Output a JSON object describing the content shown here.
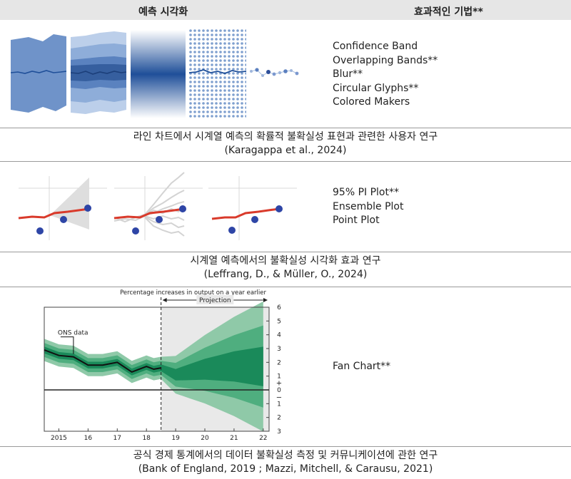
{
  "header": {
    "left_title": "예측 시각화",
    "right_title": "효과적인 기법**"
  },
  "rows": [
    {
      "techniques": [
        "Confidence Band",
        "Overlapping Bands**",
        "Blur**",
        "Circular Glyphs**",
        "Colored Makers"
      ],
      "caption_line1": "라인 차트에서 시계열 예측의 확률적 불확실성 표현과 관련한 사용자 연구",
      "caption_line2": "(Karagappa et al., 2024)"
    },
    {
      "techniques": [
        "95% PI Plot**",
        "Ensemble Plot",
        "Point Plot"
      ],
      "caption_line1": "시계열 예측에서의 불확실성 시각화 효과 연구",
      "caption_line2": "(Leffrang, D., & Müller, O., 2024)"
    },
    {
      "techniques": [
        "Fan Chart**"
      ],
      "caption_line1": "공식 경제 통계에서의 데이터 불확실성 측정 및 커뮤니케이션에 관한 연구",
      "caption_line2": "(Bank of England, 2019 ; Mazzi, Mitchell, & Carausu, 2021)"
    }
  ],
  "colors": {
    "band_dark": "#1f4f99",
    "band_light": "#a9c0e0",
    "forecast_red": "#d93a2b",
    "point_blue": "#2e45a6",
    "fan_green": "#1a8a5a",
    "projection_shade": "#e9e9e9"
  },
  "fan_chart": {
    "top_label": "Percentage increases in output on a year earlier",
    "projection_label": "Projection",
    "annotation": "ONS data",
    "x_ticks": [
      "2015",
      "16",
      "17",
      "18",
      "19",
      "20",
      "21",
      "22"
    ],
    "y_ticks_upper": [
      "6",
      "5",
      "4",
      "3",
      "2",
      "1"
    ],
    "y_plus": "+",
    "y_zero": "0",
    "y_minus": "−",
    "y_ticks_lower": [
      "1",
      "2",
      "3"
    ]
  },
  "chart_data": {
    "type": "area",
    "title": "Percentage increases in output on a year earlier",
    "xlabel": "",
    "ylabel": "",
    "x_ticks": [
      "2015",
      "16",
      "17",
      "18",
      "19",
      "20",
      "21",
      "22"
    ],
    "ylim": [
      -3,
      6
    ],
    "series": [
      {
        "name": "ONS data",
        "x": [
          2014.5,
          2015.0,
          2015.5,
          2016.0,
          2016.5,
          2017.0,
          2017.5,
          2018.0,
          2018.25,
          2018.5
        ],
        "values": [
          2.9,
          2.5,
          2.4,
          1.8,
          1.8,
          2.0,
          1.3,
          1.7,
          1.5,
          1.6
        ]
      },
      {
        "name": "",
        "x": [
          2018.5,
          2019.0,
          2019.5,
          2020.0,
          2020.5,
          2021.0,
          2021.5,
          2022.0
        ],
        "values": [
          1.6,
          1.1,
          1.3,
          1.5,
          1.6,
          1.7,
          1.7,
          1.7
        ]
      }
    ],
    "projection_start": 2018.5,
    "x_range": [
      2014.5,
      2022.2
    ]
  }
}
